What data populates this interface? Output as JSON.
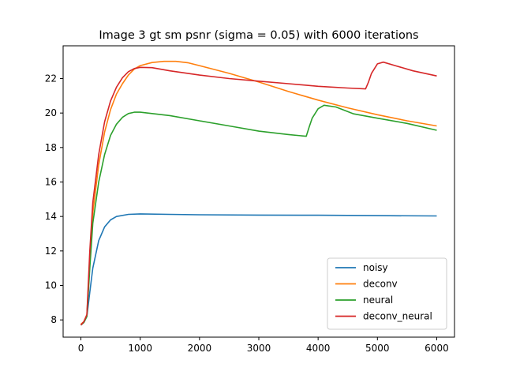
{
  "chart_data": {
    "type": "line",
    "title": "Image 3 gt sm psnr (sigma = 0.05) with 6000 iterations",
    "xlabel": "",
    "ylabel": "",
    "xlim": [
      -300,
      6300
    ],
    "ylim": [
      7.0,
      23.9
    ],
    "xticks": [
      0,
      1000,
      2000,
      3000,
      4000,
      5000,
      6000
    ],
    "yticks": [
      8,
      10,
      12,
      14,
      16,
      18,
      20,
      22
    ],
    "grid": false,
    "legend_position": "lower-right",
    "series": [
      {
        "name": "noisy",
        "color": "#1f77b4",
        "points": [
          [
            0,
            7.7
          ],
          [
            50,
            7.85
          ],
          [
            100,
            8.2
          ],
          [
            150,
            9.6
          ],
          [
            200,
            11.0
          ],
          [
            300,
            12.6
          ],
          [
            400,
            13.4
          ],
          [
            500,
            13.8
          ],
          [
            600,
            14.0
          ],
          [
            800,
            14.12
          ],
          [
            1000,
            14.15
          ],
          [
            1500,
            14.12
          ],
          [
            2000,
            14.1
          ],
          [
            3000,
            14.08
          ],
          [
            4000,
            14.07
          ],
          [
            5000,
            14.05
          ],
          [
            6000,
            14.03
          ]
        ]
      },
      {
        "name": "deconv",
        "color": "#ff7f0e",
        "points": [
          [
            0,
            7.75
          ],
          [
            50,
            7.9
          ],
          [
            100,
            8.3
          ],
          [
            150,
            11.5
          ],
          [
            200,
            14.2
          ],
          [
            300,
            17.0
          ],
          [
            400,
            18.9
          ],
          [
            500,
            20.2
          ],
          [
            600,
            21.1
          ],
          [
            700,
            21.7
          ],
          [
            800,
            22.2
          ],
          [
            900,
            22.55
          ],
          [
            1000,
            22.75
          ],
          [
            1200,
            22.93
          ],
          [
            1400,
            23.0
          ],
          [
            1600,
            23.0
          ],
          [
            1800,
            22.92
          ],
          [
            2000,
            22.75
          ],
          [
            2500,
            22.3
          ],
          [
            3000,
            21.8
          ],
          [
            3500,
            21.25
          ],
          [
            4000,
            20.75
          ],
          [
            4500,
            20.3
          ],
          [
            5000,
            19.9
          ],
          [
            5500,
            19.55
          ],
          [
            6000,
            19.25
          ]
        ]
      },
      {
        "name": "neural",
        "color": "#2ca02c",
        "points": [
          [
            0,
            7.7
          ],
          [
            50,
            7.85
          ],
          [
            100,
            8.2
          ],
          [
            150,
            11.0
          ],
          [
            200,
            13.6
          ],
          [
            300,
            16.0
          ],
          [
            400,
            17.6
          ],
          [
            500,
            18.7
          ],
          [
            600,
            19.35
          ],
          [
            700,
            19.75
          ],
          [
            800,
            19.97
          ],
          [
            900,
            20.05
          ],
          [
            1000,
            20.05
          ],
          [
            1500,
            19.85
          ],
          [
            2000,
            19.55
          ],
          [
            2500,
            19.25
          ],
          [
            3000,
            18.95
          ],
          [
            3500,
            18.75
          ],
          [
            3800,
            18.65
          ],
          [
            3850,
            19.2
          ],
          [
            3900,
            19.7
          ],
          [
            4000,
            20.25
          ],
          [
            4100,
            20.45
          ],
          [
            4300,
            20.35
          ],
          [
            4600,
            19.95
          ],
          [
            5000,
            19.7
          ],
          [
            5500,
            19.4
          ],
          [
            6000,
            19.0
          ]
        ]
      },
      {
        "name": "deconv_neural",
        "color": "#d62728",
        "points": [
          [
            0,
            7.7
          ],
          [
            50,
            7.9
          ],
          [
            100,
            8.3
          ],
          [
            150,
            12.0
          ],
          [
            200,
            14.8
          ],
          [
            300,
            17.6
          ],
          [
            400,
            19.5
          ],
          [
            500,
            20.7
          ],
          [
            600,
            21.5
          ],
          [
            700,
            22.05
          ],
          [
            800,
            22.4
          ],
          [
            900,
            22.58
          ],
          [
            1000,
            22.65
          ],
          [
            1200,
            22.63
          ],
          [
            1500,
            22.45
          ],
          [
            2000,
            22.2
          ],
          [
            2500,
            22.0
          ],
          [
            3000,
            21.85
          ],
          [
            3500,
            21.7
          ],
          [
            4000,
            21.55
          ],
          [
            4500,
            21.45
          ],
          [
            4800,
            21.4
          ],
          [
            4850,
            21.8
          ],
          [
            4900,
            22.3
          ],
          [
            5000,
            22.85
          ],
          [
            5100,
            22.95
          ],
          [
            5300,
            22.75
          ],
          [
            5600,
            22.45
          ],
          [
            6000,
            22.15
          ]
        ]
      }
    ]
  }
}
